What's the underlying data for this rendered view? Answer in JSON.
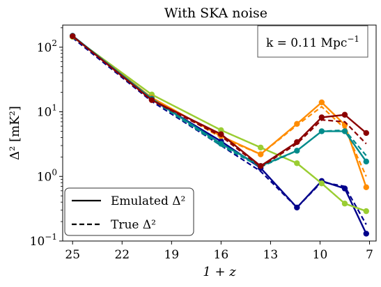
{
  "chart_data": {
    "type": "line",
    "title": "With SKA noise",
    "xlabel": "1 + z",
    "ylabel": "Δ² [mK²]",
    "x_ticks": [
      25,
      22,
      19,
      16,
      13,
      10,
      7
    ],
    "x_range_reversed": [
      25.6,
      6.6
    ],
    "y_scale": "log",
    "y_range": [
      0.1,
      220
    ],
    "y_ticks": [
      {
        "value": 0.1,
        "base": "10",
        "exp": "−1"
      },
      {
        "value": 1,
        "base": "10",
        "exp": "0"
      },
      {
        "value": 10,
        "base": "10",
        "exp": "1"
      },
      {
        "value": 100,
        "base": "10",
        "exp": "2"
      }
    ],
    "x": [
      25,
      20.2,
      16,
      13.6,
      11.4,
      9.9,
      8.5,
      7.2
    ],
    "annotation": {
      "prefix": "k = 0.11 Mpc",
      "sup": "−1"
    },
    "legend": {
      "placement": "bottom-left",
      "entries": [
        {
          "label": "Emulated Δ²",
          "style": "solid"
        },
        {
          "label": "True Δ²",
          "style": "dashed"
        }
      ]
    },
    "series": [
      {
        "color": "#00008b",
        "emulated": [
          150,
          15.5,
          3.5,
          1.35,
          0.33,
          0.85,
          0.65,
          0.13
        ],
        "true": [
          140,
          14.5,
          3.0,
          1.2,
          0.33,
          0.82,
          0.7,
          0.18
        ]
      },
      {
        "color": "#9acd32",
        "emulated": [
          145,
          18.5,
          5.2,
          2.8,
          1.6,
          0.78,
          0.38,
          0.29
        ],
        "true": [
          145,
          18.5,
          5.2,
          2.8,
          1.6,
          0.78,
          0.38,
          0.29
        ]
      },
      {
        "color": "#ff8c00",
        "emulated": [
          148,
          16.5,
          4.2,
          2.2,
          6.5,
          14,
          6.3,
          0.68
        ],
        "true": [
          148,
          16.5,
          4.0,
          2.2,
          6.2,
          12,
          5.5,
          1.0
        ]
      },
      {
        "color": "#008b8b",
        "emulated": [
          150,
          16,
          3.2,
          1.45,
          2.5,
          5.0,
          5.0,
          1.7
        ],
        "true": [
          150,
          15.5,
          3.0,
          1.4,
          2.5,
          5.0,
          5.2,
          2.1
        ]
      },
      {
        "color": "#8b0000",
        "emulated": [
          148,
          15.2,
          4.5,
          1.45,
          3.4,
          8.2,
          9.0,
          4.7
        ],
        "true": [
          148,
          15.0,
          4.2,
          1.4,
          3.2,
          7.5,
          7.0,
          3.2
        ]
      }
    ]
  }
}
